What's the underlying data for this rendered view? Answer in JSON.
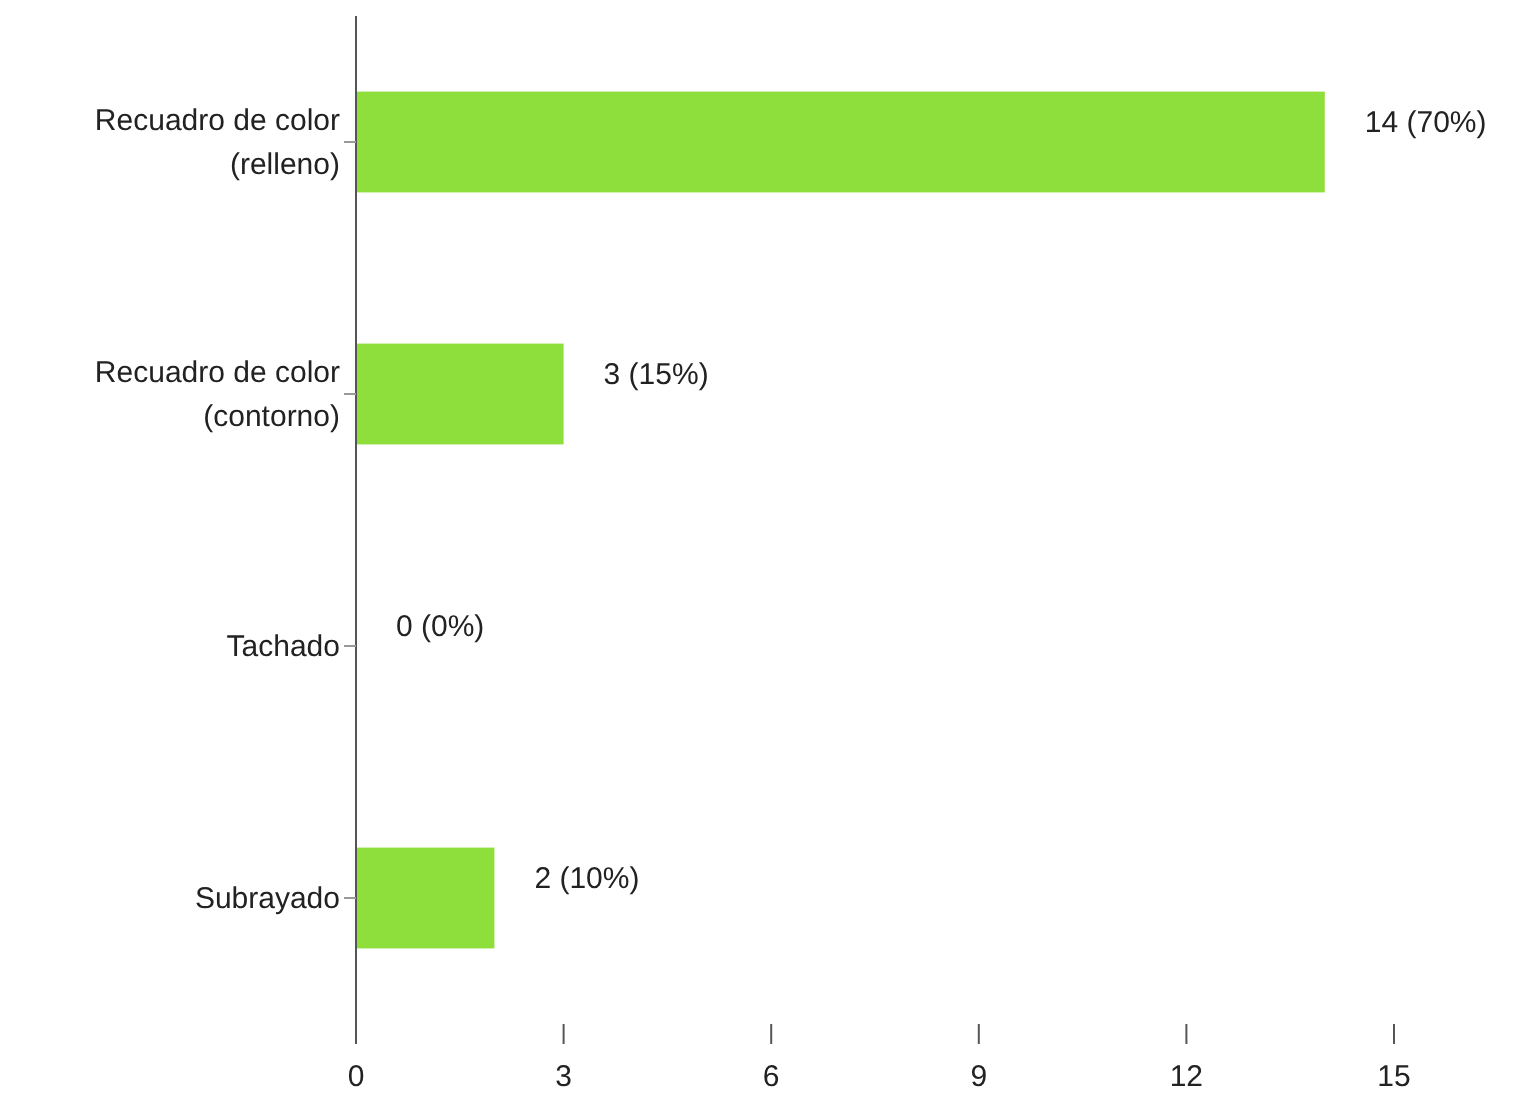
{
  "chart_data": {
    "type": "bar",
    "orientation": "horizontal",
    "categories": [
      "Recuadro de color\n(relleno)",
      "Recuadro de color\n(contorno)",
      "Tachado",
      "Subrayado"
    ],
    "values": [
      14,
      3,
      0,
      2
    ],
    "value_labels": [
      "14 (70%)",
      "3 (15%)",
      "0 (0%)",
      "2 (10%)"
    ],
    "color": "#8fdf3c",
    "xlim": [
      0,
      15
    ],
    "xticks": [
      0,
      3,
      6,
      9,
      12,
      15
    ],
    "grid": false
  }
}
